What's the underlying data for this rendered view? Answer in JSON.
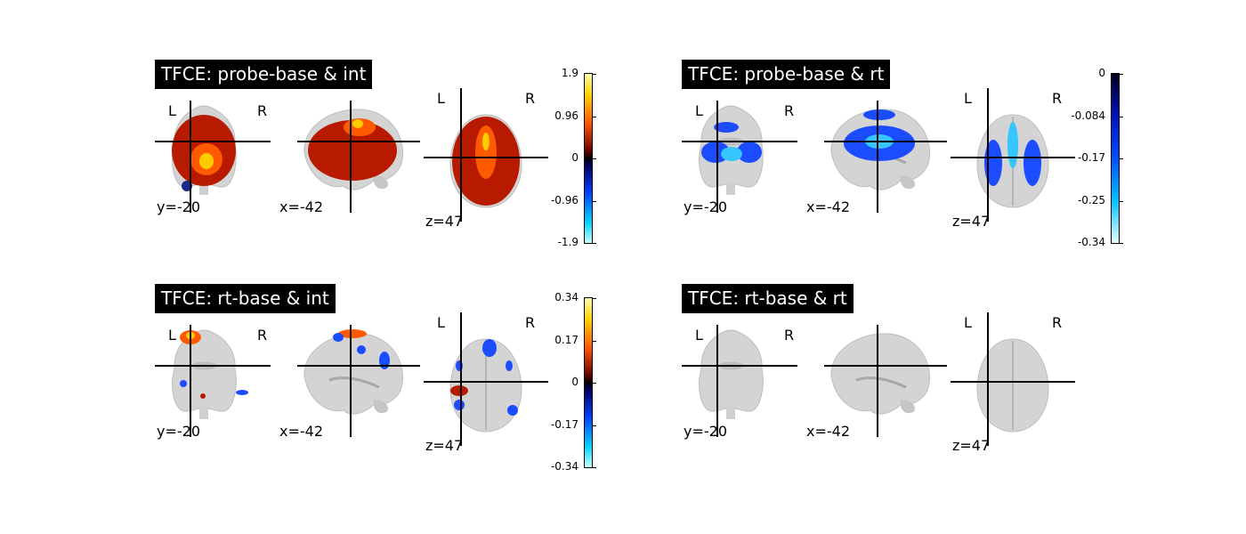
{
  "panels": [
    {
      "title": "TFCE: probe-base & int",
      "orient": {
        "left": "L",
        "right": "R"
      },
      "coords": {
        "coronal": "y=-20",
        "sagittal": "x=-42",
        "axial": "z=47"
      },
      "overlay": "heat-full",
      "colorbar": {
        "visible": true,
        "scheme": "cold_hot",
        "ticks": [
          "1.9",
          "0.96",
          "0",
          "-0.96",
          "-1.9"
        ]
      }
    },
    {
      "title": "TFCE: probe-base & rt",
      "orient": {
        "left": "L",
        "right": "R"
      },
      "coords": {
        "coronal": "y=-20",
        "sagittal": "x=-42",
        "axial": "z=47"
      },
      "overlay": "blue-full",
      "colorbar": {
        "visible": true,
        "scheme": "blues",
        "ticks": [
          "0",
          "-0.084",
          "-0.17",
          "-0.25",
          "-0.34"
        ]
      }
    },
    {
      "title": "TFCE: rt-base & int",
      "orient": {
        "left": "L",
        "right": "R"
      },
      "coords": {
        "coronal": "y=-20",
        "sagittal": "x=-42",
        "axial": "z=47"
      },
      "overlay": "sparse",
      "colorbar": {
        "visible": true,
        "scheme": "cold_hot",
        "ticks": [
          "0.34",
          "0.17",
          "0",
          "-0.17",
          "-0.34"
        ]
      }
    },
    {
      "title": "TFCE: rt-base & rt",
      "orient": {
        "left": "L",
        "right": "R"
      },
      "coords": {
        "coronal": "y=-20",
        "sagittal": "x=-42",
        "axial": "z=47"
      },
      "overlay": "none",
      "colorbar": {
        "visible": false
      }
    }
  ],
  "colors": {
    "brain": "#d4d4d4",
    "brain_dark": "#9a9a9a",
    "hot_low": "#b81a00",
    "hot_mid": "#ff5a00",
    "hot_high": "#ffcc00",
    "cold_low": "#1c4cff",
    "cold_high": "#35c6ff"
  }
}
